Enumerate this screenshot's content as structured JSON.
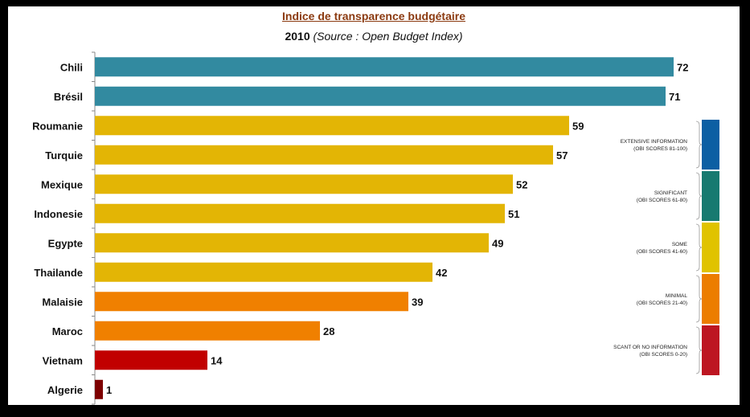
{
  "chart_data": {
    "type": "bar",
    "orientation": "horizontal",
    "title": "Indice de transparence budgétaire",
    "subtitle_year": "2010",
    "subtitle_source": "(Source : Open Budget Index)",
    "categories": [
      "Chili",
      "Brésil",
      "Roumanie",
      "Turquie",
      "Mexique",
      "Indonesie",
      "Egypte",
      "Thailande",
      "Malaisie",
      "Maroc",
      "Vietnam",
      "Algerie"
    ],
    "values": [
      72,
      71,
      59,
      57,
      52,
      51,
      49,
      42,
      39,
      28,
      14,
      1
    ],
    "bar_colors": [
      "#328aa0",
      "#328aa0",
      "#e3b505",
      "#e3b505",
      "#e3b505",
      "#e3b505",
      "#e3b505",
      "#e3b505",
      "#f08000",
      "#f08000",
      "#c10000",
      "#7e0000"
    ],
    "xlim": [
      0,
      72
    ],
    "grid": false,
    "legend_position": "right",
    "legend": [
      {
        "line1": "EXTENSIVE INFORMATION",
        "line2": "(OBI SCORES 81-100)",
        "color": "#0c5fa3"
      },
      {
        "line1": "SIGNIFICANT",
        "line2": "(OBI SCORES 61-80)",
        "color": "#177a70"
      },
      {
        "line1": "SOME",
        "line2": "(OBI SCORES 41-60)",
        "color": "#e0c300"
      },
      {
        "line1": "MINIMAL",
        "line2": "(OBI SCORES 21-40)",
        "color": "#ec7d00"
      },
      {
        "line1": "SCANT OR NO INFORMATION",
        "line2": "(OBI SCORES 0-20)",
        "color": "#bd1622"
      }
    ]
  }
}
